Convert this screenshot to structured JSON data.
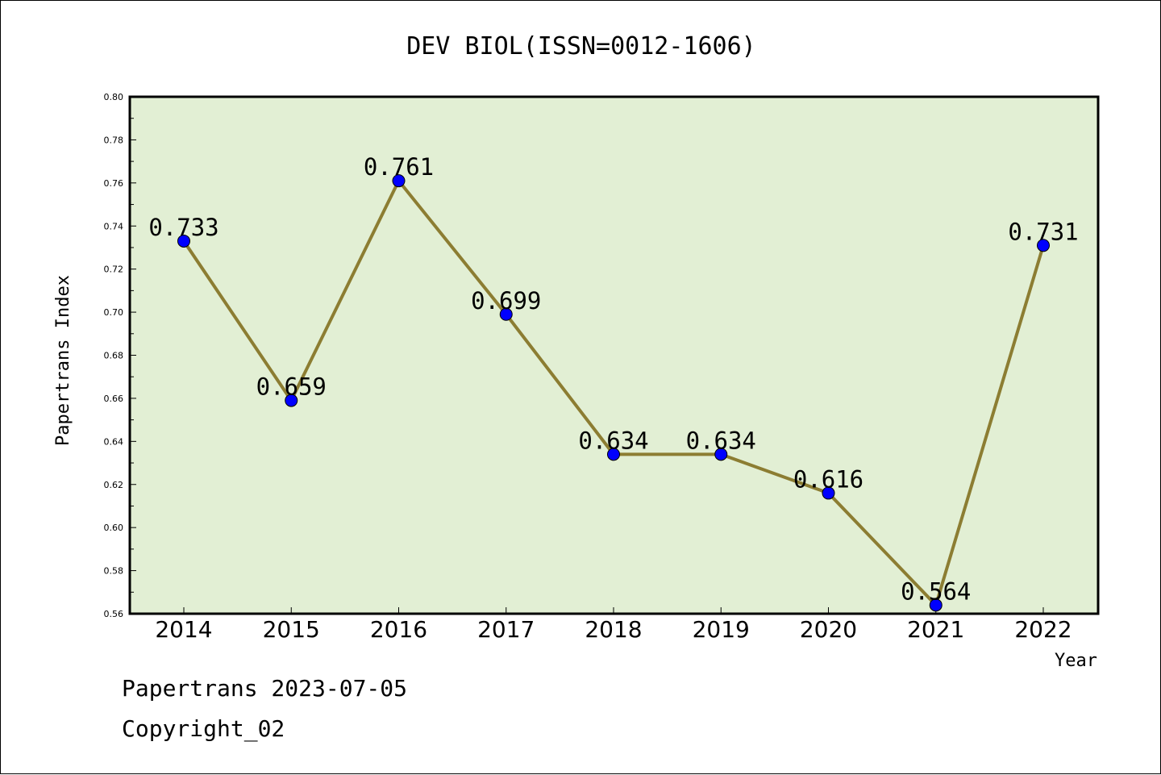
{
  "chart_data": {
    "type": "line",
    "title": "DEV BIOL(ISSN=0012-1606)",
    "xlabel": "Year",
    "ylabel": "Papertrans Index",
    "categories": [
      "2014",
      "2015",
      "2016",
      "2017",
      "2018",
      "2019",
      "2020",
      "2021",
      "2022"
    ],
    "values": [
      0.733,
      0.659,
      0.761,
      0.699,
      0.634,
      0.634,
      0.616,
      0.564,
      0.731
    ],
    "data_labels": [
      "0.733",
      "0.659",
      "0.761",
      "0.699",
      "0.634",
      "0.634",
      "0.616",
      "0.564",
      "0.731"
    ],
    "ylim": [
      0.56,
      0.8
    ],
    "yticks": [
      "0.56",
      "0.58",
      "0.60",
      "0.62",
      "0.64",
      "0.66",
      "0.68",
      "0.70",
      "0.72",
      "0.74",
      "0.76",
      "0.78",
      "0.80"
    ],
    "grid": false,
    "colors": {
      "plot_background": "#e2efd4",
      "line": "#8c7d32",
      "marker": "#0000ff"
    }
  },
  "footer": {
    "line1": "Papertrans 2023-07-05",
    "line2": "Copyright_02"
  }
}
